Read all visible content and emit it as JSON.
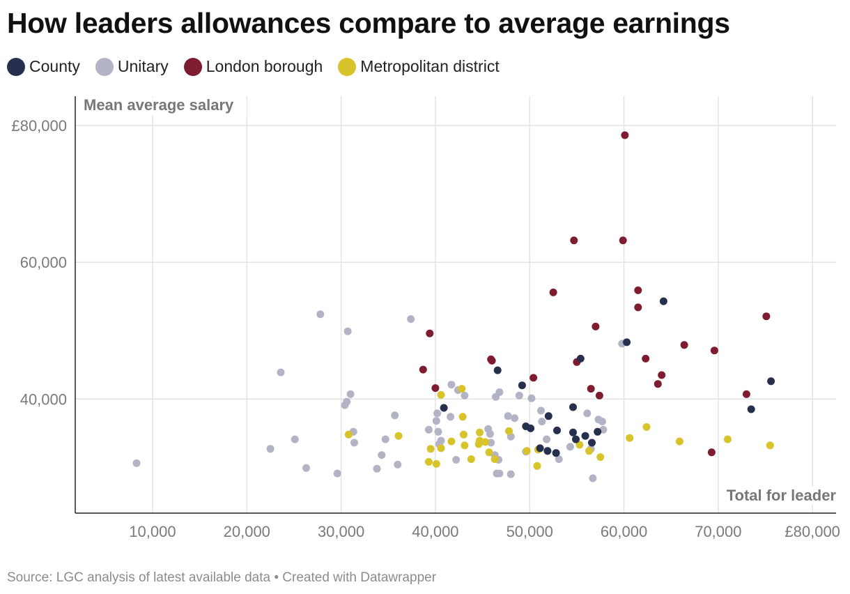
{
  "title": "How leaders allowances compare to average earnings",
  "source": "Source: LGC analysis of latest available data • Created with Datawrapper",
  "legend": [
    {
      "label": "County",
      "color": "#26304e"
    },
    {
      "label": "Unitary",
      "color": "#b3b3c6"
    },
    {
      "label": "London borough",
      "color": "#7e1d30"
    },
    {
      "label": "Metropolitan district",
      "color": "#d9c32a"
    }
  ],
  "chart_data": {
    "type": "scatter",
    "title": "How leaders allowances compare to average earnings",
    "xlabel": "Total for leader",
    "ylabel": "Mean average salary",
    "xlim": [
      1800,
      82500
    ],
    "ylim": [
      23300,
      84300
    ],
    "xticks": [
      10000,
      20000,
      30000,
      40000,
      50000,
      60000,
      70000,
      80000
    ],
    "xtick_labels": [
      "10,000",
      "20,000",
      "30,000",
      "40,000",
      "50,000",
      "60,000",
      "70,000",
      "£80,000"
    ],
    "yticks": [
      40000,
      60000,
      80000
    ],
    "ytick_labels": [
      "40,000",
      "60,000",
      "£80,000"
    ],
    "grid": true,
    "legend_position": "top-left",
    "series": [
      {
        "name": "Unitary",
        "color": "#b3b3c6",
        "points": [
          [
            8300,
            30600
          ],
          [
            22500,
            32700
          ],
          [
            23600,
            43900
          ],
          [
            25100,
            34100
          ],
          [
            26300,
            29900
          ],
          [
            27800,
            52400
          ],
          [
            29600,
            29100
          ],
          [
            30400,
            39100
          ],
          [
            30600,
            39600
          ],
          [
            30700,
            49900
          ],
          [
            31000,
            40700
          ],
          [
            31300,
            35200
          ],
          [
            31400,
            33600
          ],
          [
            33800,
            29800
          ],
          [
            34300,
            31800
          ],
          [
            34700,
            34100
          ],
          [
            35700,
            37600
          ],
          [
            36000,
            30400
          ],
          [
            37400,
            51700
          ],
          [
            39300,
            35500
          ],
          [
            40100,
            36800
          ],
          [
            40200,
            37900
          ],
          [
            40300,
            35200
          ],
          [
            40400,
            33400
          ],
          [
            40600,
            33900
          ],
          [
            41600,
            37400
          ],
          [
            41700,
            42100
          ],
          [
            42200,
            31100
          ],
          [
            42400,
            41300
          ],
          [
            43100,
            40500
          ],
          [
            45600,
            35600
          ],
          [
            45800,
            34900
          ],
          [
            45900,
            33600
          ],
          [
            46300,
            31800
          ],
          [
            46400,
            40300
          ],
          [
            46500,
            29100
          ],
          [
            46700,
            31100
          ],
          [
            46800,
            41000
          ],
          [
            46800,
            29100
          ],
          [
            47700,
            37500
          ],
          [
            48000,
            34500
          ],
          [
            48000,
            29000
          ],
          [
            48400,
            37200
          ],
          [
            48900,
            40500
          ],
          [
            49600,
            32300
          ],
          [
            50200,
            40100
          ],
          [
            51200,
            38300
          ],
          [
            51300,
            36700
          ],
          [
            51800,
            34100
          ],
          [
            53100,
            31200
          ],
          [
            54300,
            33000
          ],
          [
            56100,
            37900
          ],
          [
            56500,
            32700
          ],
          [
            56700,
            28400
          ],
          [
            57300,
            37000
          ],
          [
            57700,
            36700
          ],
          [
            57800,
            35500
          ],
          [
            59800,
            48100
          ]
        ]
      },
      {
        "name": "Metropolitan district",
        "color": "#d9c32a",
        "points": [
          [
            30800,
            34800
          ],
          [
            36100,
            34600
          ],
          [
            39300,
            30800
          ],
          [
            39500,
            32700
          ],
          [
            40100,
            30500
          ],
          [
            40600,
            40600
          ],
          [
            40600,
            32800
          ],
          [
            42800,
            41500
          ],
          [
            41700,
            33800
          ],
          [
            42900,
            37400
          ],
          [
            43000,
            34800
          ],
          [
            43100,
            33200
          ],
          [
            43800,
            31200
          ],
          [
            44600,
            33400
          ],
          [
            44700,
            35100
          ],
          [
            44700,
            33900
          ],
          [
            45300,
            33700
          ],
          [
            45700,
            32200
          ],
          [
            46300,
            31200
          ],
          [
            47800,
            35300
          ],
          [
            49700,
            32400
          ],
          [
            50800,
            30200
          ],
          [
            50900,
            32600
          ],
          [
            55300,
            33300
          ],
          [
            56300,
            32400
          ],
          [
            57500,
            31500
          ],
          [
            60600,
            34300
          ],
          [
            62400,
            35900
          ],
          [
            65900,
            33800
          ],
          [
            71000,
            34100
          ],
          [
            75500,
            33200
          ]
        ]
      },
      {
        "name": "London borough",
        "color": "#7e1d30",
        "points": [
          [
            38700,
            44300
          ],
          [
            39400,
            49600
          ],
          [
            40000,
            41600
          ],
          [
            45900,
            45800
          ],
          [
            46000,
            45600
          ],
          [
            50400,
            43100
          ],
          [
            52500,
            55600
          ],
          [
            54700,
            63200
          ],
          [
            55000,
            45400
          ],
          [
            56500,
            41500
          ],
          [
            57000,
            50600
          ],
          [
            57400,
            40500
          ],
          [
            59900,
            63200
          ],
          [
            60100,
            78600
          ],
          [
            61500,
            55900
          ],
          [
            61500,
            53400
          ],
          [
            62300,
            45900
          ],
          [
            63600,
            42200
          ],
          [
            64000,
            43500
          ],
          [
            66400,
            47900
          ],
          [
            69300,
            32200
          ],
          [
            69600,
            47100
          ],
          [
            73000,
            40700
          ],
          [
            75100,
            52100
          ]
        ]
      },
      {
        "name": "County",
        "color": "#26304e",
        "points": [
          [
            40900,
            38700
          ],
          [
            46600,
            44200
          ],
          [
            49200,
            42000
          ],
          [
            49600,
            36000
          ],
          [
            50100,
            35700
          ],
          [
            51100,
            32800
          ],
          [
            51900,
            32400
          ],
          [
            52000,
            37500
          ],
          [
            52800,
            32100
          ],
          [
            52900,
            35400
          ],
          [
            54600,
            35100
          ],
          [
            54600,
            38800
          ],
          [
            54900,
            34100
          ],
          [
            55400,
            45900
          ],
          [
            55900,
            34600
          ],
          [
            56600,
            33600
          ],
          [
            57200,
            35200
          ],
          [
            60300,
            48300
          ],
          [
            64200,
            54300
          ],
          [
            73500,
            38500
          ],
          [
            75600,
            42600
          ]
        ]
      }
    ]
  }
}
